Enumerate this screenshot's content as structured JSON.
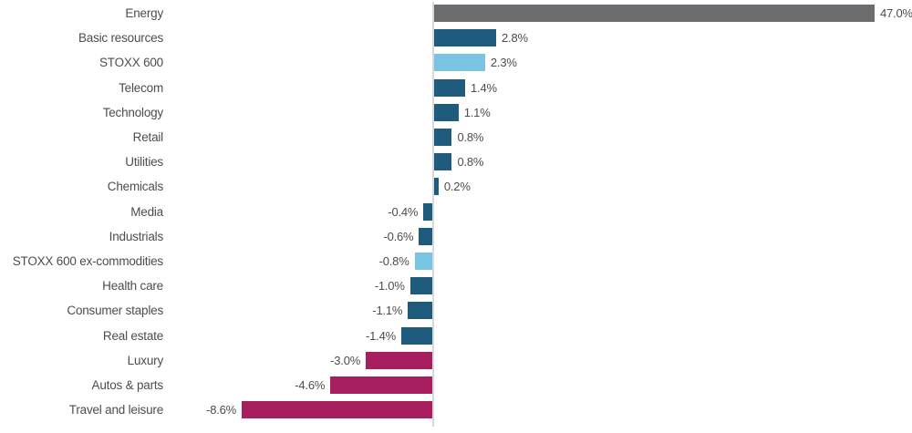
{
  "chart_data": {
    "type": "bar",
    "orientation": "horizontal",
    "title": "",
    "xlabel": "",
    "ylabel": "",
    "grid": false,
    "legend": "none",
    "value_suffix": "%",
    "xlim_visible": [
      -10,
      20
    ],
    "zero_axis": true,
    "categories": [
      "Energy",
      "Basic resources",
      "STOXX 600",
      "Telecom",
      "Technology",
      "Retail",
      "Utilities",
      "Chemicals",
      "Media",
      "Industrials",
      "STOXX 600 ex-commodities",
      "Health care",
      "Consumer staples",
      "Real estate",
      "Luxury",
      "Autos & parts",
      "Travel and leisure"
    ],
    "values": [
      47.0,
      2.8,
      2.3,
      1.4,
      1.1,
      0.8,
      0.8,
      0.2,
      -0.4,
      -0.6,
      -0.8,
      -1.0,
      -1.1,
      -1.4,
      -3.0,
      -4.6,
      -8.6
    ],
    "value_labels": [
      "47.0%",
      "2.8%",
      "2.3%",
      "1.4%",
      "1.1%",
      "0.8%",
      "0.8%",
      "0.2%",
      "-0.4%",
      "-0.6%",
      "-0.8%",
      "-1.0%",
      "-1.1%",
      "-1.4%",
      "-3.0%",
      "-4.6%",
      "-8.6%"
    ],
    "color_keys": [
      "gray",
      "dark_blue",
      "light_blue",
      "dark_blue",
      "dark_blue",
      "dark_blue",
      "dark_blue",
      "dark_blue",
      "dark_blue",
      "dark_blue",
      "light_blue",
      "dark_blue",
      "dark_blue",
      "dark_blue",
      "magenta",
      "magenta",
      "magenta"
    ],
    "clipped_bars": [
      "Energy"
    ]
  },
  "palette": {
    "gray": "#6c6d6f",
    "dark_blue": "#1e5b7c",
    "light_blue": "#79c3e5",
    "magenta": "#a81f5f",
    "axis_line": "#d8d9da",
    "text": "#4d4d4f"
  }
}
